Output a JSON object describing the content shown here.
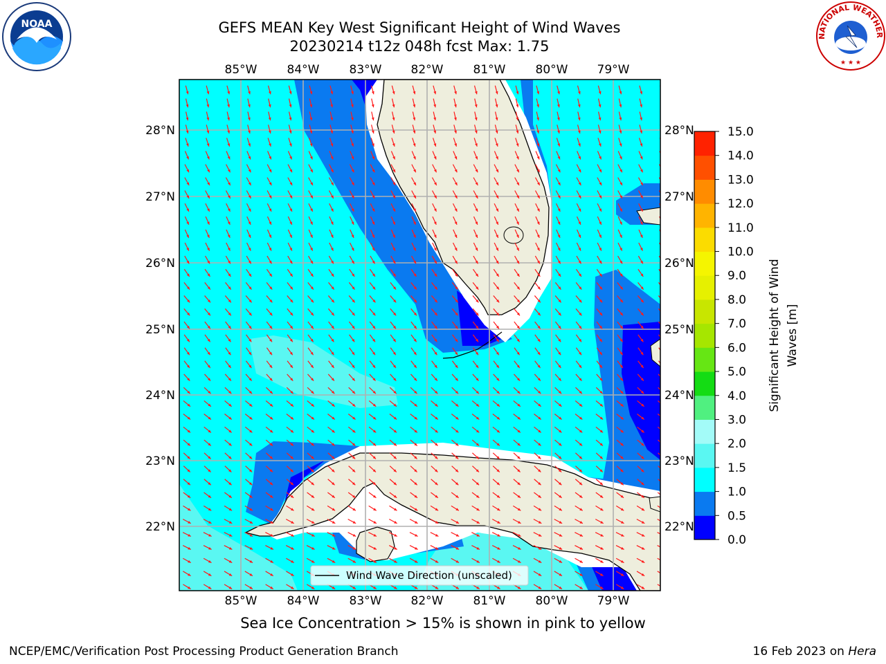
{
  "title": {
    "line1": "GEFS MEAN Key West Significant Height of Wind Waves",
    "line2": "20230214 t12z 048h fcst   Max: 1.75"
  },
  "axes": {
    "lon_labels": [
      "85°W",
      "84°W",
      "83°W",
      "82°W",
      "81°W",
      "80°W",
      "79°W"
    ],
    "lat_labels": [
      "28°N",
      "27°N",
      "26°N",
      "25°N",
      "24°N",
      "23°N",
      "22°N"
    ]
  },
  "legend": {
    "label": "Wind Wave Direction (unscaled)"
  },
  "colorbar": {
    "label_line1": "Significant Height of Wind",
    "label_line2": "Waves [m]",
    "ticks": [
      "0.0",
      "0.5",
      "1.0",
      "1.5",
      "2.0",
      "3.0",
      "4.0",
      "5.0",
      "6.0",
      "7.0",
      "8.0",
      "9.0",
      "10.0",
      "11.0",
      "12.0",
      "13.0",
      "14.0",
      "15.0"
    ],
    "colors": [
      "#0000ff",
      "#0a7af0",
      "#00ffff",
      "#5af7f2",
      "#a3fbf8",
      "#50f080",
      "#14dc14",
      "#66e614",
      "#a6e600",
      "#c8e600",
      "#e6f000",
      "#f5f500",
      "#fbdc00",
      "#ffb400",
      "#ff8c00",
      "#ff5000",
      "#ff2200"
    ]
  },
  "caption": "Sea Ice Concentration > 15% is shown in pink to yellow",
  "credit": "NCEP/EMC/Verification Post Processing Product Generation Branch",
  "date": {
    "text": "16 Feb 2023 on",
    "host": "Hera"
  },
  "logos": {
    "noaa_text": "NOAA",
    "nws_text": "NATIONAL WEATHER SERVICE"
  }
}
